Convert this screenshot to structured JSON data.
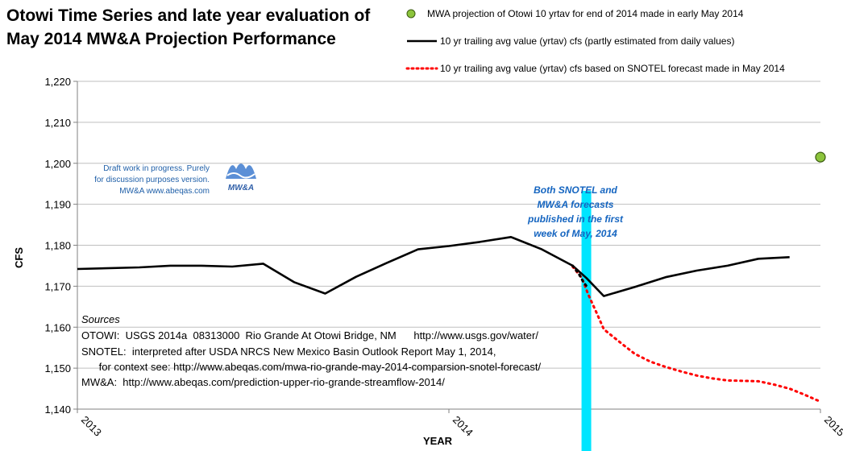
{
  "chart_data": {
    "type": "line",
    "title": [
      "Otowi Time Series and late year evaluation of",
      "May 2014 MW&A Projection Performance"
    ],
    "xlabel": "YEAR",
    "ylabel": "CFS",
    "xlim": [
      2013,
      2015
    ],
    "ylim": [
      1140,
      1220
    ],
    "x_ticks": [
      2013,
      2014,
      2015
    ],
    "x_tick_labels": [
      "2013",
      "2014",
      "2015"
    ],
    "y_ticks": [
      1140,
      1150,
      1160,
      1170,
      1180,
      1190,
      1200,
      1210,
      1220
    ],
    "y_tick_labels": [
      "1,140",
      "1,150",
      "1,160",
      "1,170",
      "1,180",
      "1,190",
      "1,200",
      "1,210",
      "1,220"
    ],
    "grid": "horizontal",
    "legend_position": "top-right",
    "series": [
      {
        "name": "MWA projection of Otowi 10 yrtav for end of 2014 made in early May 2014",
        "style": "point",
        "color": "#8cc43c",
        "x": [
          2015.0
        ],
        "y": [
          1201.5
        ]
      },
      {
        "name": "10 yr trailing avg value (yrtav) cfs (partly estimated from daily values)",
        "style": "solid",
        "color": "#000000",
        "x": [
          2013.0,
          2013.167,
          2013.25,
          2013.333,
          2013.417,
          2013.5,
          2013.583,
          2013.667,
          2013.75,
          2013.833,
          2013.917,
          2014.0,
          2014.083,
          2014.167,
          2014.25,
          2014.333,
          2014.37,
          2014.417,
          2014.5,
          2014.583,
          2014.667,
          2014.75,
          2014.833,
          2014.917
        ],
        "y": [
          1174.2,
          1174.6,
          1175.0,
          1175.0,
          1174.8,
          1175.5,
          1171.0,
          1168.2,
          1172.3,
          1175.7,
          1179.0,
          1179.8,
          1180.8,
          1182.0,
          1179.0,
          1175.0,
          1172.0,
          1167.6,
          1169.8,
          1172.2,
          1173.8,
          1175.0,
          1176.7,
          1177.1
        ]
      },
      {
        "name": "10 yr trailing avg value (yrtav) cfs based on SNOTEL forecast made in May 2014",
        "style": "dotted",
        "color": "#ff0000",
        "x": [
          2014.333,
          2014.358,
          2014.375,
          2014.4,
          2014.417,
          2014.458,
          2014.5,
          2014.542,
          2014.583,
          2014.625,
          2014.667,
          2014.708,
          2014.75,
          2014.792,
          2014.833,
          2014.875,
          2014.917,
          2014.958,
          2015.0
        ],
        "y": [
          1174.8,
          1172.0,
          1168.0,
          1163.0,
          1159.5,
          1156.5,
          1153.5,
          1151.6,
          1150.3,
          1149.2,
          1148.2,
          1147.5,
          1147.0,
          1146.9,
          1146.8,
          1146.0,
          1145.0,
          1143.5,
          1141.8
        ]
      },
      {
        "name": "",
        "style": "dotted",
        "color": "#000000",
        "x": [
          2014.333,
          2014.35,
          2014.362,
          2014.375
        ],
        "y": [
          1175.0,
          1173.0,
          1171.0,
          1169.5
        ]
      }
    ],
    "highlight_band": {
      "x": 2014.37,
      "color": "#00e5ff"
    },
    "annotations": {
      "callout": [
        "Both SNOTEL and",
        "MW&A forecasts",
        "published in the first",
        "week of May, 2014"
      ],
      "draft": [
        "Draft work in progress.  Purely",
        "for discussion purposes version.",
        "MW&A www.abeqas.com"
      ],
      "logo_text": "MW&A",
      "sources_head": "Sources",
      "sources": [
        "OTOWI:  USGS 2014a  08313000  Rio Grande At Otowi Bridge, NM      http://www.usgs.gov/water/",
        "SNOTEL:  interpreted after USDA NRCS New Mexico Basin Outlook Report May 1, 2014,",
        "      for context see: http://www.abeqas.com/mwa-rio-grande-may-2014-comparsion-snotel-forecast/",
        "MW&A:  http://www.abeqas.com/prediction-upper-rio-grande-streamflow-2014/"
      ]
    }
  }
}
